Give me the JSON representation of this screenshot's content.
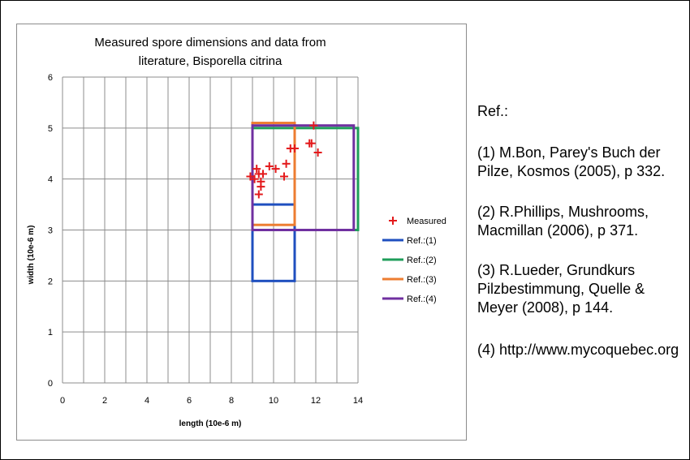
{
  "chart_data": {
    "type": "scatter",
    "title_lines": [
      "Measured spore dimensions and data from",
      "literature, Bisporella citrina"
    ],
    "xlabel": "length (10e-6 m)",
    "ylabel": "width (10e-6 m)",
    "xlim": [
      0,
      14
    ],
    "ylim": [
      0,
      6
    ],
    "xticks": [
      0,
      2,
      4,
      6,
      8,
      10,
      12,
      14
    ],
    "yticks": [
      0,
      1,
      2,
      3,
      4,
      5,
      6
    ],
    "grid": true,
    "legend_position": "right",
    "points_series": {
      "name": "Measured",
      "color": "#e31a1c",
      "x": [
        8.9,
        9.2,
        9.3,
        9.3,
        9.4,
        9.4,
        9.5,
        9.8,
        10.1,
        10.5,
        10.6,
        10.8,
        11.0,
        11.7,
        11.8,
        11.9,
        12.1,
        9.1
      ],
      "y": [
        4.05,
        4.2,
        4.1,
        3.7,
        3.85,
        3.95,
        4.1,
        4.25,
        4.2,
        4.05,
        4.3,
        4.6,
        4.6,
        4.7,
        4.7,
        5.05,
        4.52,
        4.0
      ]
    },
    "range_series": [
      {
        "name": "Ref.:(1)",
        "color": "#1f4fbf",
        "x_range": [
          9,
          11
        ],
        "y_range": [
          2,
          3.5
        ]
      },
      {
        "name": "Ref.:(2)",
        "color": "#1f9e5a",
        "x_range": [
          9,
          14
        ],
        "y_range": [
          3,
          5
        ]
      },
      {
        "name": "Ref.:(3)",
        "color": "#ed7d31",
        "x_range": [
          9,
          11
        ],
        "y_range": [
          3.1,
          5.1
        ]
      },
      {
        "name": "Ref.:(4)",
        "color": "#7030a0",
        "x_range": [
          9,
          13.8
        ],
        "y_range": [
          3,
          5.05
        ]
      }
    ]
  },
  "references": {
    "heading": "Ref.:",
    "items": [
      [
        "(1) M.Bon, Parey's Buch der",
        "Pilze, Kosmos (2005), p 332."
      ],
      [
        "(2) R.Phillips, Mushrooms,",
        "Macmillan (2006), p 371."
      ],
      [
        "(3) R.Lueder, Grundkurs",
        "Pilzbestimmung, Quelle &",
        "Meyer (2008), p 144."
      ],
      [
        "(4) http://www.mycoquebec.org"
      ]
    ]
  }
}
